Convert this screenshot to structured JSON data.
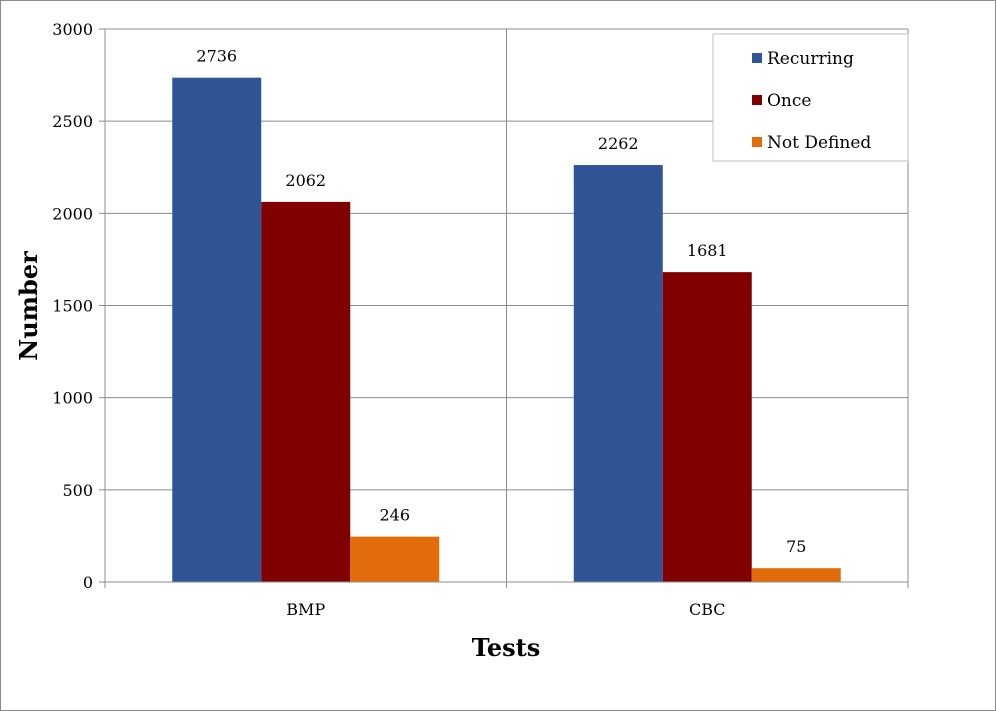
{
  "chart_data": {
    "type": "bar",
    "title": "",
    "xlabel": "Tests",
    "ylabel": "Number",
    "categories": [
      "BMP",
      "CBC"
    ],
    "series": [
      {
        "name": "Recurring",
        "color": "#2F5597",
        "values": [
          2736,
          2262
        ]
      },
      {
        "name": "Once",
        "color": "#800000",
        "values": [
          2062,
          1681
        ]
      },
      {
        "name": "Not Defined",
        "color": "#E36C0A",
        "values": [
          246,
          75
        ]
      }
    ],
    "ylim": [
      0,
      3000
    ],
    "yticks": [
      0,
      500,
      1000,
      1500,
      2000,
      2500,
      3000
    ],
    "grid": true,
    "legend_position": "top-right"
  }
}
